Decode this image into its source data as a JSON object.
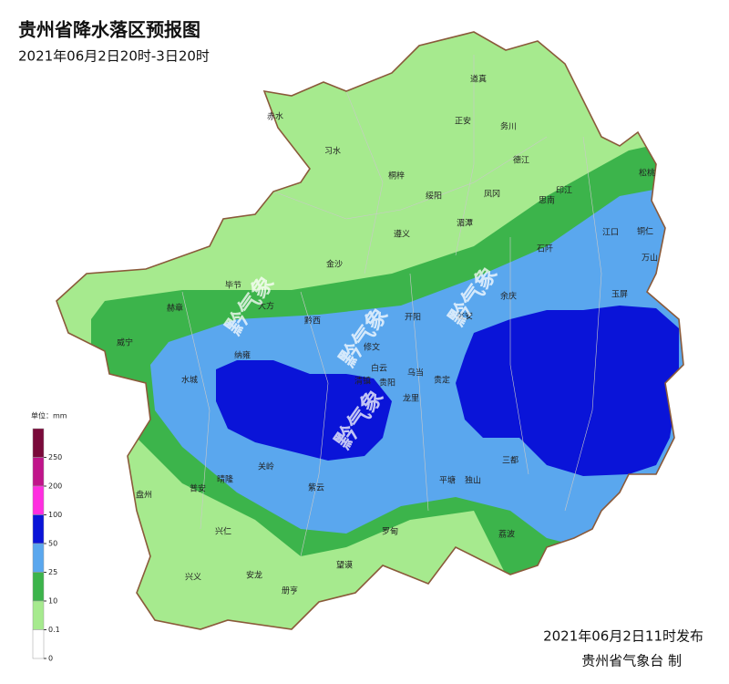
{
  "title": "贵州省降水落区预报图",
  "subtitle": "2021年06月2日20时-3日20时",
  "watermark": "黔气象",
  "legend": {
    "unit": "单位：mm",
    "ticks": [
      250,
      200,
      100,
      50,
      25,
      10,
      0.1,
      0
    ],
    "colors": [
      "#7a0a3a",
      "#c0158a",
      "#ff2ee0",
      "#0a14d8",
      "#5aa7ee",
      "#3cb44b",
      "#a6ea8e",
      "#ffffff"
    ]
  },
  "places": [
    "赤水",
    "习水",
    "道真",
    "正安",
    "务川",
    "桐梓",
    "绥阳",
    "凤冈",
    "德江",
    "印江",
    "思南",
    "松桃",
    "湄潭",
    "遵义",
    "江口",
    "铜仁",
    "石阡",
    "万山",
    "金沙",
    "毕节",
    "大方",
    "余庆",
    "玉屏",
    "赫章",
    "黔西",
    "开阳",
    "瓮安",
    "威宁",
    "纳雍",
    "修文",
    "白云",
    "乌当",
    "水城",
    "清镇",
    "贵阳",
    "龙里",
    "贵定",
    "关岭",
    "晴隆",
    "普安",
    "盘州",
    "紫云",
    "平塘",
    "独山",
    "三都",
    "兴仁",
    "罗甸",
    "荔波",
    "兴义",
    "安龙",
    "望谟",
    "册亨"
  ],
  "footer": {
    "issued": "2021年06月2日11时发布",
    "issuer": "贵州省气象台 制"
  }
}
